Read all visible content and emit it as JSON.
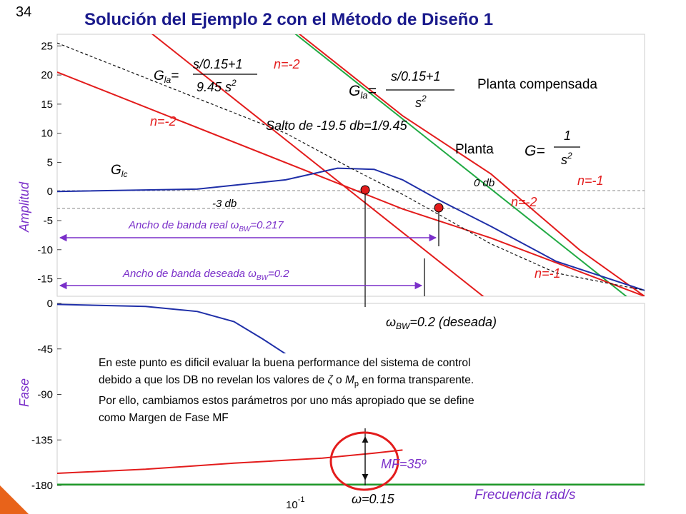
{
  "slide": {
    "number": "34",
    "title": "Solución del Ejemplo 2 con el Método de Diseño 1"
  },
  "chart_data": [
    {
      "type": "line",
      "panel": "amplitude",
      "ylabel": "Amplitud",
      "yticks": [
        "25",
        "20",
        "15",
        "10",
        "5",
        "0",
        "-5",
        "-10",
        "-15"
      ],
      "ylim": [
        -18,
        27
      ],
      "xscale": "log",
      "xlim": [
        0.01,
        1.0
      ],
      "series": [
        {
          "name": "Planta",
          "color": "#e31c1c",
          "x": [
            0.01,
            1.0
          ],
          "y": [
            40,
            -40
          ]
        },
        {
          "name": "Planta compensada",
          "color": "#e31c1c",
          "x": [
            0.01,
            0.15,
            0.3,
            0.6,
            1.0
          ],
          "y": [
            60,
            13.0,
            3.0,
            -10,
            -18
          ]
        },
        {
          "name": "",
          "color": "#22aa44",
          "x": [
            0.01,
            1.0
          ],
          "y": [
            59.5,
            -20.5
          ]
        },
        {
          "name": "",
          "color": "#e31c1c",
          "x": [
            0.01,
            0.15,
            0.3,
            1.0
          ],
          "y": [
            20.5,
            -3,
            -8,
            -18
          ]
        },
        {
          "name": "G_lc",
          "color": "#1f2fa8",
          "x": [
            0.01,
            0.03,
            0.06,
            0.09,
            0.12,
            0.15,
            0.2,
            0.3,
            0.5,
            1.0
          ],
          "y": [
            0,
            0.4,
            2.0,
            4.0,
            3.8,
            2.0,
            -1.5,
            -6,
            -12,
            -17
          ]
        },
        {
          "name": "",
          "color": "#111111",
          "dashed": true,
          "x": [
            0.01,
            0.06,
            0.1,
            0.15,
            0.2,
            0.3,
            0.5,
            1.0
          ],
          "y": [
            25.5,
            10,
            4,
            -0.5,
            -4,
            -9,
            -14,
            -17
          ]
        }
      ],
      "hlines": [
        {
          "y": 0,
          "label": "0 db"
        },
        {
          "y": -3,
          "label": "-3 db"
        }
      ],
      "points": [
        {
          "x": 0.15,
          "y": 0
        },
        {
          "x": 0.217,
          "y": -3
        }
      ],
      "annotations": {
        "gla1_lhs": "G",
        "gla1_sub": "la",
        "gla1_num": "s/0.15+1",
        "gla1_den": "9.45 s",
        "gla1_den_sup": "2",
        "n_minus2_top": "n=-2",
        "gla2_lhs": "G",
        "gla2_sub": "la",
        "gla2_num": "s/0.15+1",
        "gla2_den": "s",
        "gla2_den_sup": "2",
        "planta_compensada": "Planta compensada",
        "n_minus2_left": "n=-2",
        "salto": "Salto de -19.5 db=1/9.45",
        "g_lhs": "G=",
        "g_num": "1",
        "g_den": "s",
        "g_den_sup": "2",
        "planta": "Planta",
        "glc": "G",
        "glc_sub": "lc",
        "db0": "0 db",
        "n_minus1_right": "n=-1",
        "n_minus2_right": "n=-2",
        "db3": "-3 db",
        "bw_real_prefix": "Ancho de banda real ",
        "bw_real_sym": "ω",
        "bw_real_sub": "BW",
        "bw_real_val": "=0.217",
        "bw_des_prefix": "Ancho de banda deseada ",
        "bw_des_sym": "ω",
        "bw_des_sub": "BW",
        "bw_des_val": "=0.2",
        "n_minus1_bottom": "n=-1"
      }
    },
    {
      "type": "line",
      "panel": "phase",
      "ylabel": "Fase",
      "yticks": [
        "0",
        "-45",
        "-90",
        "-135",
        "-180"
      ],
      "ylim": [
        -180,
        0
      ],
      "xscale": "log",
      "xlim": [
        0.01,
        1.0
      ],
      "xlabel": "Frecuencia rad/s",
      "xtick_base": "10",
      "xtick_exp": "-1",
      "series": [
        {
          "name": "",
          "color": "#1f2fa8",
          "x": [
            0.01,
            0.02,
            0.03,
            0.04,
            0.05,
            0.06
          ],
          "y": [
            -1,
            -3,
            -8,
            -18,
            -35,
            -50
          ]
        },
        {
          "name": "",
          "color": "#e31c1c",
          "x": [
            0.01,
            0.02,
            0.04,
            0.08,
            0.12,
            0.15
          ],
          "y": [
            -168,
            -164,
            -158,
            -153,
            -148,
            -145
          ]
        },
        {
          "name": "",
          "color": "#1f9a2a",
          "x": [
            0.01,
            1.0
          ],
          "y": [
            -180,
            -180
          ]
        }
      ],
      "annotations": {
        "wbw_sym": "ω",
        "wbw_sub": "BW",
        "wbw_text": "=0.2 (deseada)",
        "mf": "MF=35º",
        "w015_sym": "ω",
        "w015_text": "=0.15"
      }
    }
  ],
  "note": {
    "line1": "En este punto es dificil evaluar la buena performance del sistema de control",
    "line2a": "debido a que los DB no revelan los valores de ",
    "zeta": "ζ",
    "line2b": " o ",
    "mp": "M",
    "mp_sub": "p",
    "line2c": " en forma transparente.",
    "line3": "Por ello, cambiamos estos parámetros por uno más apropiado que se define",
    "line4": "como Margen de Fase MF"
  },
  "colors": {
    "red": "#e31c1c",
    "blue": "#1f2fa8",
    "green": "#22aa44",
    "purple": "#7a2fc9",
    "title": "#1a1a8c"
  }
}
